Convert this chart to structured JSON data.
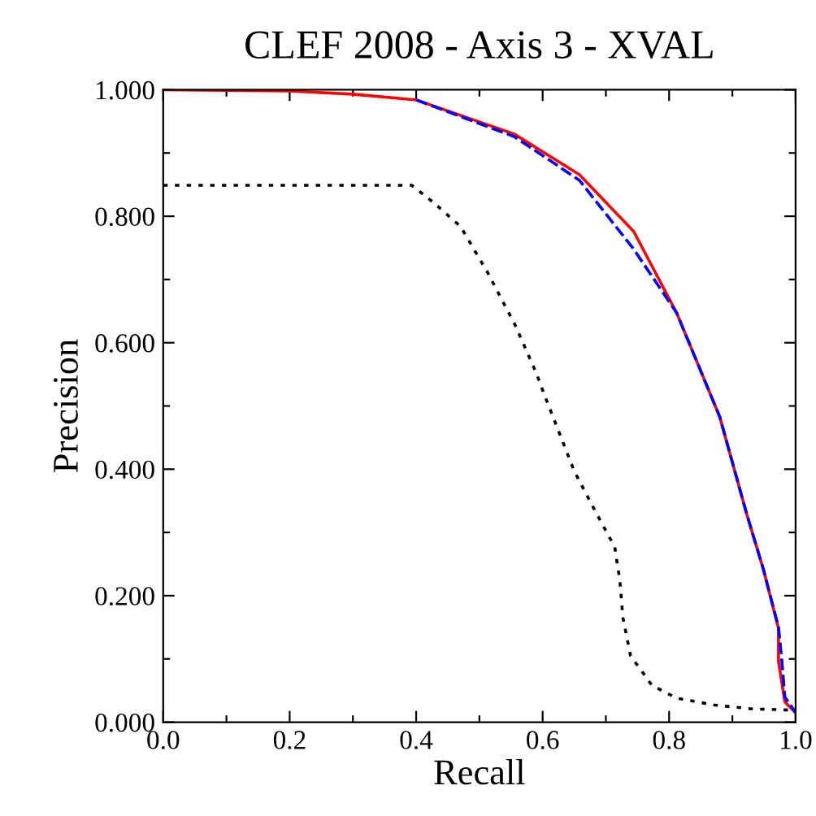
{
  "chart_data": {
    "type": "line",
    "title": "CLEF 2008 - Axis 3 - XVAL",
    "xlabel": "Recall",
    "ylabel": "Precision",
    "xlim": [
      0,
      1
    ],
    "ylim": [
      0,
      1
    ],
    "xticks": [
      {
        "value": 0,
        "label": "0.0"
      },
      {
        "value": 0.1,
        "label": null
      },
      {
        "value": 0.2,
        "label": "0.2"
      },
      {
        "value": 0.3,
        "label": null
      },
      {
        "value": 0.4,
        "label": "0.4"
      },
      {
        "value": 0.5,
        "label": null
      },
      {
        "value": 0.6,
        "label": "0.6"
      },
      {
        "value": 0.7,
        "label": null
      },
      {
        "value": 0.8,
        "label": "0.8"
      },
      {
        "value": 0.9,
        "label": null
      },
      {
        "value": 1,
        "label": "1.0"
      }
    ],
    "yticks": [
      {
        "value": 0,
        "label": "0.000"
      },
      {
        "value": 0.1,
        "label": null
      },
      {
        "value": 0.2,
        "label": "0.200"
      },
      {
        "value": 0.3,
        "label": null
      },
      {
        "value": 0.4,
        "label": "0.400"
      },
      {
        "value": 0.5,
        "label": null
      },
      {
        "value": 0.6,
        "label": "0.600"
      },
      {
        "value": 0.7,
        "label": null
      },
      {
        "value": 0.8,
        "label": "0.800"
      },
      {
        "value": 0.9,
        "label": null
      },
      {
        "value": 1,
        "label": "1.000"
      }
    ],
    "grid": false,
    "legend": false,
    "series": [
      {
        "color": "#000000",
        "line_style": "dotted",
        "x": [
          0,
          0.393,
          0.427,
          0.47,
          0.513,
          0.556,
          0.59,
          0.603,
          0.65,
          0.684,
          0.714,
          0.722,
          0.727,
          0.739,
          0.773,
          0.812,
          0.872,
          0.932,
          1.0
        ],
        "values": [
          0.849,
          0.849,
          0.822,
          0.784,
          0.711,
          0.629,
          0.552,
          0.517,
          0.397,
          0.332,
          0.277,
          0.225,
          0.165,
          0.105,
          0.058,
          0.038,
          0.027,
          0.021,
          0.019
        ]
      },
      {
        "color": "#ff0000",
        "line_style": "solid",
        "x": [
          0,
          0.2,
          0.3,
          0.4,
          0.555,
          0.658,
          0.744,
          0.812,
          0.88,
          0.923,
          0.949,
          0.973,
          0.973,
          0.983,
          1.0
        ],
        "values": [
          1.0,
          0.998,
          0.993,
          0.984,
          0.93,
          0.866,
          0.776,
          0.647,
          0.483,
          0.328,
          0.242,
          0.148,
          0.096,
          0.032,
          0.015
        ]
      },
      {
        "color": "#0000ff",
        "line_style": "dashed",
        "x": [
          0.4,
          0.555,
          0.658,
          0.744,
          0.812,
          0.88,
          0.923,
          0.949,
          0.973,
          0.978,
          0.983,
          1.0
        ],
        "values": [
          0.984,
          0.926,
          0.857,
          0.748,
          0.647,
          0.483,
          0.328,
          0.242,
          0.15,
          0.1,
          0.04,
          0.015
        ]
      }
    ]
  }
}
